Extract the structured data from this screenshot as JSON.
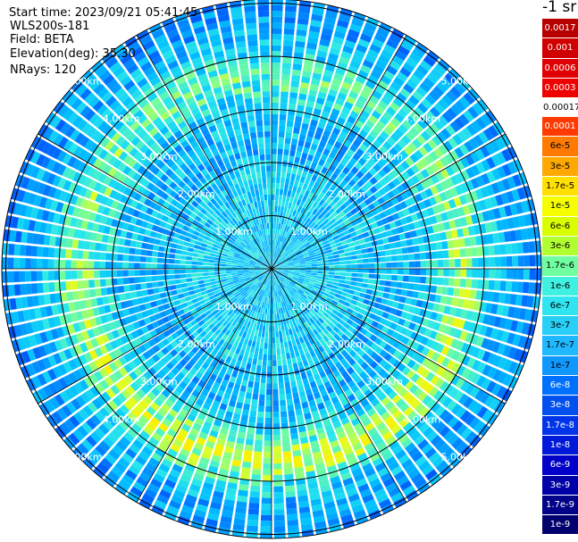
{
  "info": {
    "start_time": "Start time: 2023/09/21 05:41:45",
    "instrument": "WLS200s-181",
    "field": "Field: BETA",
    "elevation": "Elevation(deg): 35.30",
    "nrays": "NRays: 120"
  },
  "colorbar": {
    "title": "-1 sr",
    "labels": [
      "0.0017",
      "0.001",
      "0.0006",
      "0.0003",
      "0.00017",
      "0.0001",
      "6e-5",
      "3e-5",
      "1.7e-5",
      "1e-5",
      "6e-6",
      "3e-6",
      "1.7e-6",
      "1e-6",
      "6e-7",
      "3e-7",
      "1.7e-7",
      "1e-7",
      "6e-8",
      "3e-8",
      "1.7e-8",
      "1e-8",
      "6e-9",
      "3e-9",
      "1.7e-9",
      "1e-9"
    ],
    "colors": [
      "#b80000",
      "#d00000",
      "#e00000",
      "#ee0000",
      "#ffffff",
      "#ff3a00",
      "#ff7a00",
      "#ffa800",
      "#ffe000",
      "#f5ff00",
      "#d8ff00",
      "#b0ff30",
      "#70ffa0",
      "#40f0e0",
      "#30e4f0",
      "#28d0f8",
      "#20b8ff",
      "#1098ff",
      "#0070ff",
      "#0050f0",
      "#0034e8",
      "#0018d8",
      "#0000c8",
      "#0000a8",
      "#000088",
      "#00006e"
    ],
    "label_colors": [
      "#ffffff",
      "#ffffff",
      "#ffffff",
      "#ffffff",
      "#000000",
      "#ffffff",
      "#000000",
      "#000000",
      "#000000",
      "#000000",
      "#000000",
      "#000000",
      "#000000",
      "#000000",
      "#000000",
      "#000000",
      "#000000",
      "#000000",
      "#ffffff",
      "#ffffff",
      "#ffffff",
      "#ffffff",
      "#ffffff",
      "#ffffff",
      "#ffffff",
      "#ffffff"
    ]
  },
  "range_labels": [
    "1.00km",
    "2.00km",
    "3.00km",
    "4.00km",
    "5.00km"
  ],
  "ring_km": [
    1,
    2,
    3,
    4,
    5
  ],
  "max_range_km": 5.2,
  "nrays": 120
}
